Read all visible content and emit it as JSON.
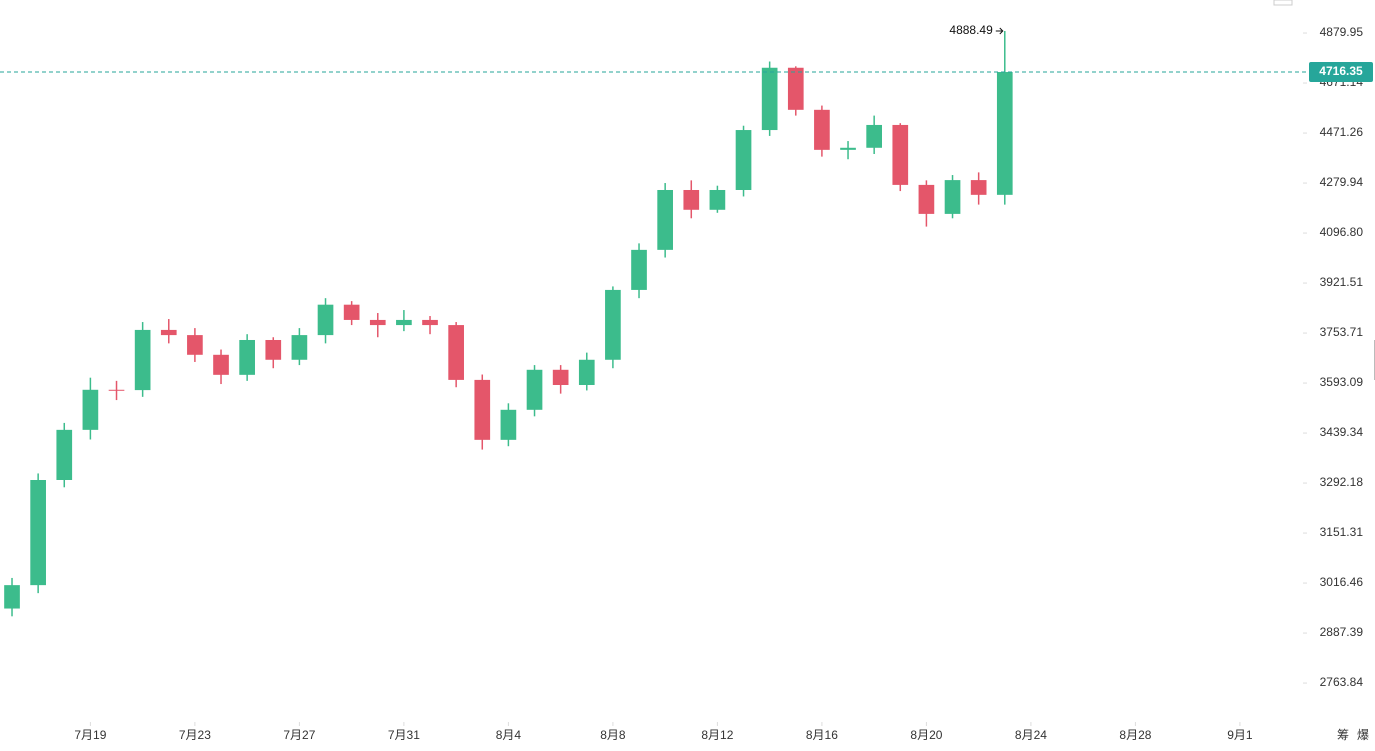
{
  "chart_data": {
    "type": "candlestick",
    "x": [
      1,
      2,
      3,
      4,
      5,
      6,
      7,
      8,
      9,
      10,
      11,
      12,
      13,
      14,
      15,
      16,
      17,
      18,
      19,
      20,
      21,
      22,
      23,
      24,
      25,
      26,
      27,
      28,
      29,
      30,
      31,
      32,
      33,
      34,
      35,
      36,
      37,
      38,
      39
    ],
    "open": [
      2950,
      3011,
      3301,
      3449,
      3572,
      3571,
      3764,
      3747,
      3683,
      3619,
      3731,
      3667,
      3747,
      3848,
      3797,
      3780,
      3797,
      3780,
      3603,
      3419,
      3510,
      3635,
      3587,
      3667,
      3898,
      4037,
      4254,
      4181,
      4254,
      4483,
      4734,
      4563,
      4406,
      4414,
      4503,
      4273,
      4166,
      4291,
      4236
    ],
    "high": [
      3030,
      3320,
      3470,
      3610,
      3600,
      3790,
      3800,
      3770,
      3700,
      3750,
      3740,
      3770,
      3870,
      3860,
      3820,
      3830,
      3810,
      3790,
      3620,
      3530,
      3650,
      3650,
      3690,
      3910,
      4060,
      4280,
      4290,
      4270,
      4500,
      4760,
      4740,
      4580,
      4440,
      4540,
      4510,
      4290,
      4310,
      4320,
      4888.49
    ],
    "low": [
      2930,
      2990,
      3280,
      3420,
      3540,
      3550,
      3720,
      3660,
      3590,
      3600,
      3640,
      3650,
      3720,
      3780,
      3740,
      3760,
      3750,
      3580,
      3390,
      3400,
      3490,
      3560,
      3570,
      3640,
      3870,
      4010,
      4150,
      4170,
      4230,
      4460,
      4540,
      4380,
      4370,
      4390,
      4250,
      4120,
      4150,
      4200,
      4200
    ],
    "close": [
      3011,
      3301,
      3449,
      3572,
      3571,
      3764,
      3747,
      3683,
      3619,
      3731,
      3667,
      3747,
      3848,
      3797,
      3780,
      3797,
      3780,
      3603,
      3419,
      3510,
      3635,
      3587,
      3667,
      3898,
      4037,
      4254,
      4181,
      4254,
      4483,
      4734,
      4563,
      4406,
      4414,
      4503,
      4273,
      4166,
      4291,
      4236,
      4716.35
    ],
    "up_color": "#3cbc8c",
    "down_color": "#e4566a",
    "price_line_color": "#26a69a",
    "log_scale": true,
    "xlim": [
      0.54,
      50.3
    ],
    "xticks": [
      {
        "value": 4,
        "label": "7月19"
      },
      {
        "value": 8,
        "label": "7月23"
      },
      {
        "value": 12,
        "label": "7月27"
      },
      {
        "value": 16,
        "label": "7月31"
      },
      {
        "value": 20,
        "label": "8月4"
      },
      {
        "value": 24,
        "label": "8月8"
      },
      {
        "value": 28,
        "label": "8月12"
      },
      {
        "value": 32,
        "label": "8月16"
      },
      {
        "value": 36,
        "label": "8月20"
      },
      {
        "value": 40,
        "label": "8月24"
      },
      {
        "value": 44,
        "label": "8月28"
      },
      {
        "value": 48,
        "label": "9月1"
      }
    ],
    "ylim": [
      2676,
      5023
    ],
    "yticks": [
      4879.95,
      4671.14,
      4471.26,
      4279.94,
      {
        "value": 4096.8,
        "label": "4096.80"
      },
      3921.51,
      3753.71,
      3593.09,
      3439.34,
      3292.18,
      3151.31,
      3016.46,
      2887.39,
      2763.84
    ]
  },
  "toolbar": [
    "筹",
    "爆"
  ]
}
